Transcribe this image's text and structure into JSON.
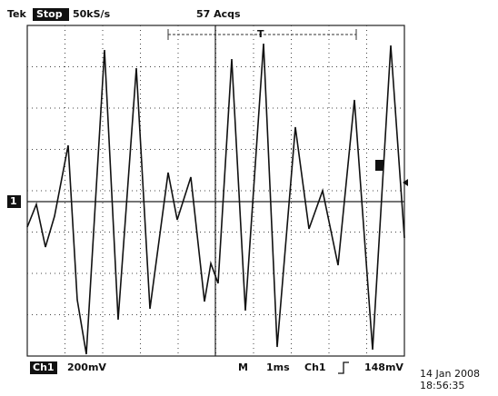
{
  "header": {
    "brand": "Tek",
    "state": "Stop",
    "sample_rate": "50kS/s",
    "acquisitions": "57 Acqs",
    "trigger_marker": "T"
  },
  "channel_marker": "1",
  "footer": {
    "channel": "Ch1",
    "scale": "200mV",
    "timebase_label": "M",
    "timebase": "1ms",
    "trigger_source": "Ch1",
    "trigger_level": "148mV",
    "date": "14 Jan 2008",
    "time": "18:56:35"
  }
}
